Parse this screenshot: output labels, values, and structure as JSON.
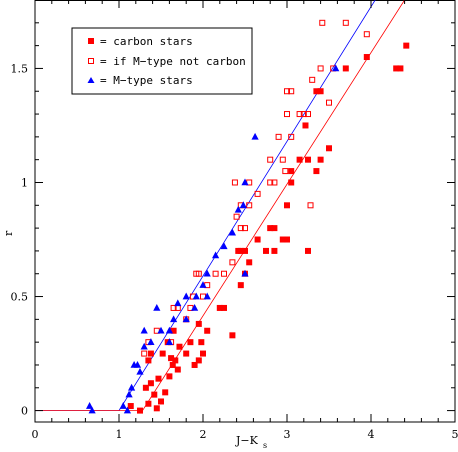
{
  "chart_data": {
    "type": "scatter",
    "xlabel": "J−K",
    "xlabel_sub": "s",
    "ylabel": "r",
    "xlim": [
      0,
      5
    ],
    "ylim": [
      -0.05,
      1.8
    ],
    "x_ticks": [
      "0",
      "1",
      "2",
      "3",
      "4",
      "5"
    ],
    "y_ticks": [
      "0",
      "0.5",
      "1",
      "1.5"
    ],
    "legend": [
      {
        "marker": "filled-square",
        "color": "#ff0000",
        "label": "= carbon stars"
      },
      {
        "marker": "open-square",
        "color": "#ff0000",
        "label": "= if M−type not carbon"
      },
      {
        "marker": "filled-triangle",
        "color": "#0000ff",
        "label": "= M−type stars"
      }
    ],
    "fit_lines": [
      {
        "name": "M-type fit",
        "color": "#0000ff",
        "points": [
          [
            0,
            0
          ],
          [
            1.0,
            0
          ],
          [
            4.05,
            1.8
          ]
        ]
      },
      {
        "name": "carbon fit",
        "color": "#ff0000",
        "points": [
          [
            0,
            0
          ],
          [
            1.28,
            0
          ],
          [
            4.4,
            1.8
          ]
        ]
      }
    ],
    "series": [
      {
        "name": "carbon stars",
        "marker": "filled-square",
        "color": "#ff0000",
        "points": [
          [
            1.14,
            0.02
          ],
          [
            1.25,
            0.0
          ],
          [
            1.35,
            0.03
          ],
          [
            1.42,
            0.07
          ],
          [
            1.45,
            0.01
          ],
          [
            1.5,
            0.04
          ],
          [
            1.32,
            0.1
          ],
          [
            1.38,
            0.12
          ],
          [
            1.47,
            0.14
          ],
          [
            1.55,
            0.08
          ],
          [
            1.6,
            0.15
          ],
          [
            1.64,
            0.2
          ],
          [
            1.67,
            0.22
          ],
          [
            1.7,
            0.18
          ],
          [
            1.35,
            0.22
          ],
          [
            1.38,
            0.25
          ],
          [
            1.52,
            0.25
          ],
          [
            1.62,
            0.23
          ],
          [
            1.58,
            0.3
          ],
          [
            1.72,
            0.28
          ],
          [
            1.65,
            0.35
          ],
          [
            1.8,
            0.25
          ],
          [
            1.85,
            0.3
          ],
          [
            1.9,
            0.2
          ],
          [
            1.95,
            0.22
          ],
          [
            1.98,
            0.3
          ],
          [
            2.0,
            0.25
          ],
          [
            2.05,
            0.35
          ],
          [
            1.95,
            0.38
          ],
          [
            2.2,
            0.45
          ],
          [
            2.25,
            0.45
          ],
          [
            2.35,
            0.33
          ],
          [
            2.45,
            0.55
          ],
          [
            2.5,
            0.6
          ],
          [
            2.55,
            0.65
          ],
          [
            2.45,
            0.7
          ],
          [
            2.5,
            0.7
          ],
          [
            2.42,
            0.7
          ],
          [
            2.65,
            0.75
          ],
          [
            2.8,
            0.8
          ],
          [
            2.85,
            0.8
          ],
          [
            2.75,
            0.7
          ],
          [
            2.85,
            0.7
          ],
          [
            2.95,
            0.75
          ],
          [
            3.0,
            0.75
          ],
          [
            3.25,
            0.7
          ],
          [
            3.0,
            0.9
          ],
          [
            3.05,
            1.0
          ],
          [
            3.05,
            1.05
          ],
          [
            3.15,
            1.1
          ],
          [
            3.25,
            1.1
          ],
          [
            3.35,
            1.05
          ],
          [
            3.4,
            1.1
          ],
          [
            3.22,
            1.25
          ],
          [
            3.35,
            1.4
          ],
          [
            3.4,
            1.4
          ],
          [
            3.5,
            1.15
          ],
          [
            3.7,
            1.5
          ],
          [
            3.95,
            1.55
          ],
          [
            4.3,
            1.5
          ],
          [
            4.35,
            1.5
          ],
          [
            4.42,
            1.6
          ]
        ]
      },
      {
        "name": "if M-type not carbon",
        "marker": "open-square",
        "color": "#ff0000",
        "points": [
          [
            1.3,
            0.25
          ],
          [
            1.35,
            0.3
          ],
          [
            1.45,
            0.35
          ],
          [
            1.62,
            0.3
          ],
          [
            1.65,
            0.45
          ],
          [
            1.7,
            0.45
          ],
          [
            1.8,
            0.4
          ],
          [
            1.85,
            0.45
          ],
          [
            1.88,
            0.5
          ],
          [
            1.95,
            0.6
          ],
          [
            1.92,
            0.6
          ],
          [
            2.0,
            0.5
          ],
          [
            2.05,
            0.55
          ],
          [
            2.15,
            0.6
          ],
          [
            2.25,
            0.6
          ],
          [
            2.35,
            0.65
          ],
          [
            2.4,
            0.85
          ],
          [
            2.45,
            0.8
          ],
          [
            2.5,
            0.8
          ],
          [
            2.45,
            0.9
          ],
          [
            2.38,
            1.0
          ],
          [
            2.55,
            0.9
          ],
          [
            2.55,
            1.0
          ],
          [
            2.65,
            0.95
          ],
          [
            2.8,
            1.0
          ],
          [
            2.85,
            1.0
          ],
          [
            2.8,
            1.1
          ],
          [
            2.9,
            1.2
          ],
          [
            2.95,
            1.1
          ],
          [
            2.98,
            1.05
          ],
          [
            3.0,
            1.3
          ],
          [
            3.05,
            1.2
          ],
          [
            3.0,
            1.4
          ],
          [
            3.05,
            1.4
          ],
          [
            3.15,
            1.3
          ],
          [
            3.2,
            1.3
          ],
          [
            3.25,
            1.3
          ],
          [
            3.3,
            1.45
          ],
          [
            3.28,
            0.9
          ],
          [
            3.4,
            1.5
          ],
          [
            3.42,
            1.7
          ],
          [
            3.5,
            1.35
          ],
          [
            3.55,
            1.5
          ],
          [
            3.7,
            1.7
          ],
          [
            3.95,
            1.65
          ]
        ]
      },
      {
        "name": "M-type stars",
        "marker": "filled-triangle",
        "color": "#0000ff",
        "points": [
          [
            0.65,
            0.02
          ],
          [
            0.68,
            0.0
          ],
          [
            1.05,
            0.02
          ],
          [
            1.1,
            0.0
          ],
          [
            1.12,
            0.07
          ],
          [
            1.15,
            0.1
          ],
          [
            1.18,
            0.2
          ],
          [
            1.22,
            0.2
          ],
          [
            1.25,
            0.17
          ],
          [
            1.3,
            0.28
          ],
          [
            1.3,
            0.35
          ],
          [
            1.38,
            0.3
          ],
          [
            1.45,
            0.45
          ],
          [
            1.5,
            0.35
          ],
          [
            1.6,
            0.35
          ],
          [
            1.6,
            0.3
          ],
          [
            1.65,
            0.4
          ],
          [
            1.7,
            0.47
          ],
          [
            1.8,
            0.4
          ],
          [
            1.8,
            0.5
          ],
          [
            1.9,
            0.45
          ],
          [
            1.92,
            0.5
          ],
          [
            2.0,
            0.55
          ],
          [
            2.05,
            0.6
          ],
          [
            2.05,
            0.5
          ],
          [
            2.15,
            0.68
          ],
          [
            2.25,
            0.72
          ],
          [
            2.35,
            0.78
          ],
          [
            2.42,
            0.88
          ],
          [
            2.48,
            0.9
          ],
          [
            2.5,
            1.0
          ],
          [
            2.5,
            0.6
          ],
          [
            2.62,
            1.2
          ],
          [
            3.58,
            1.5
          ]
        ]
      }
    ]
  }
}
